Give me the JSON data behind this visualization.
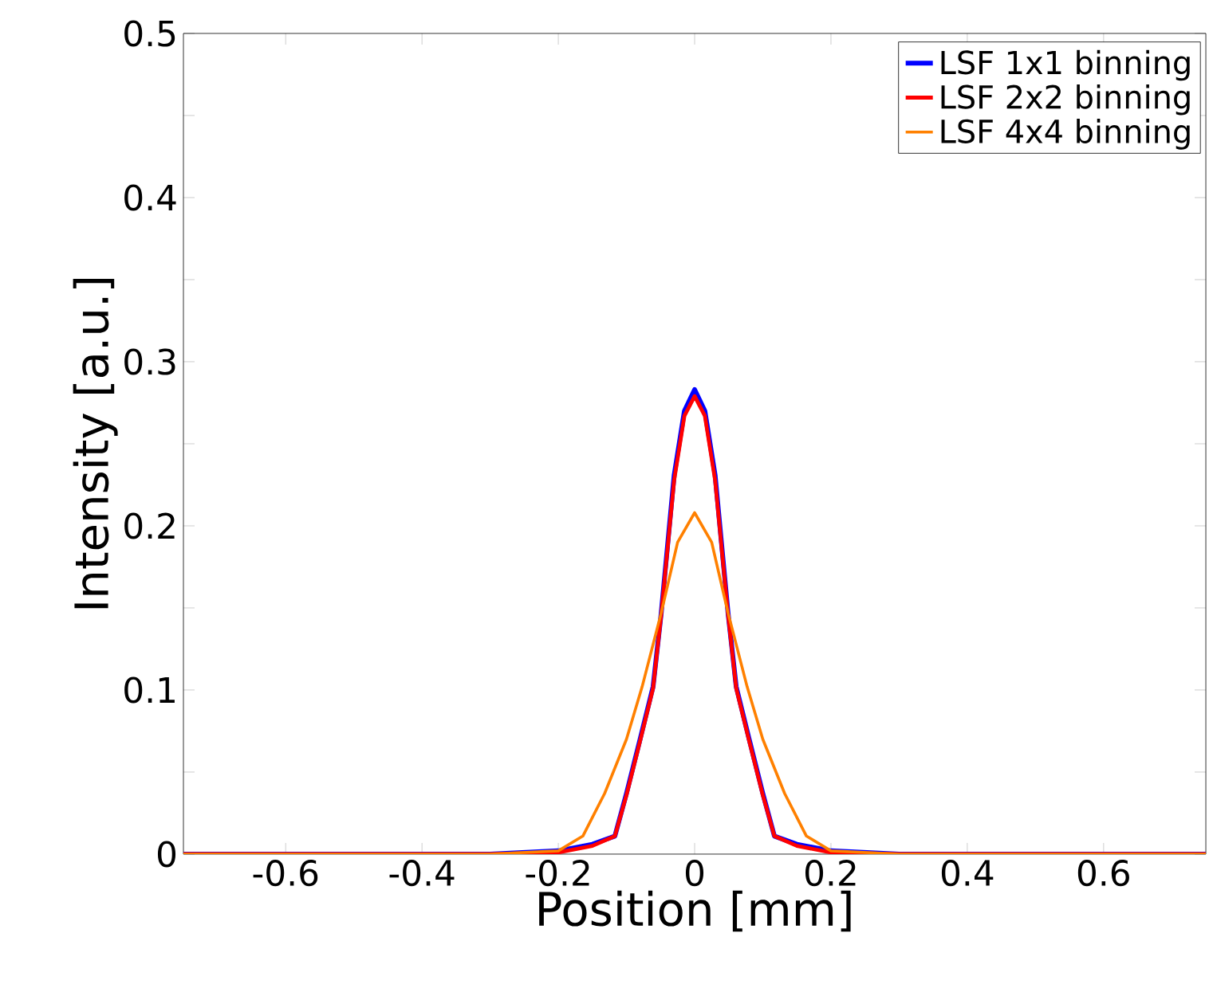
{
  "chart_data": {
    "type": "line",
    "xlabel": "Position [mm]",
    "ylabel": "Intensity [a.u.]",
    "xlim": [
      -0.75,
      0.75
    ],
    "ylim": [
      0,
      0.5
    ],
    "xticks": [
      -0.6,
      -0.4,
      -0.2,
      0,
      0.2,
      0.4,
      0.6
    ],
    "yticks": [
      0,
      {
        "value": 0.05,
        "label": null
      },
      0.1,
      {
        "value": 0.15,
        "label": null
      },
      0.2,
      {
        "value": 0.25,
        "label": null
      },
      0.3,
      {
        "value": 0.35,
        "label": null
      },
      0.4,
      {
        "value": 0.45,
        "label": null
      },
      0.5
    ],
    "grid": false,
    "legend": "top right",
    "marker": "none",
    "line_style": "solid",
    "series": [
      {
        "name": "LSF 1x1 binning",
        "color": "#0000ff",
        "x": [
          -0.75,
          -0.3,
          -0.2,
          -0.15,
          -0.117,
          -0.1,
          -0.08,
          -0.061,
          -0.049,
          -0.03,
          -0.015,
          0,
          0.015,
          0.03,
          0.049,
          0.061,
          0.08,
          0.1,
          0.117,
          0.15,
          0.2,
          0.3,
          0.75
        ],
        "values": [
          0,
          0,
          0.002,
          0.006,
          0.011,
          0.037,
          0.07,
          0.102,
          0.147,
          0.231,
          0.27,
          0.283,
          0.27,
          0.231,
          0.147,
          0.102,
          0.07,
          0.037,
          0.011,
          0.006,
          0.002,
          0,
          0
        ]
      },
      {
        "name": "LSF 2x2 binning",
        "color": "#ff0000",
        "x": [
          -0.75,
          -0.3,
          -0.2,
          -0.15,
          -0.117,
          -0.1,
          -0.08,
          -0.061,
          -0.049,
          -0.03,
          -0.015,
          0,
          0.015,
          0.03,
          0.049,
          0.061,
          0.08,
          0.1,
          0.117,
          0.15,
          0.2,
          0.3,
          0.75
        ],
        "values": [
          0,
          0,
          0.001,
          0.005,
          0.011,
          0.036,
          0.069,
          0.101,
          0.146,
          0.228,
          0.267,
          0.279,
          0.267,
          0.228,
          0.146,
          0.101,
          0.069,
          0.036,
          0.011,
          0.005,
          0.001,
          0,
          0
        ]
      },
      {
        "name": "LSF 4x4 binning",
        "color": "#ff8000",
        "x": [
          -0.75,
          -0.3,
          -0.2,
          -0.164,
          -0.132,
          -0.1,
          -0.077,
          -0.049,
          -0.025,
          0,
          0.025,
          0.049,
          0.077,
          0.1,
          0.132,
          0.164,
          0.2,
          0.3,
          0.75
        ],
        "values": [
          0,
          0,
          0.002,
          0.011,
          0.037,
          0.07,
          0.102,
          0.147,
          0.19,
          0.208,
          0.19,
          0.147,
          0.102,
          0.07,
          0.037,
          0.011,
          0.002,
          0,
          0
        ]
      }
    ]
  }
}
